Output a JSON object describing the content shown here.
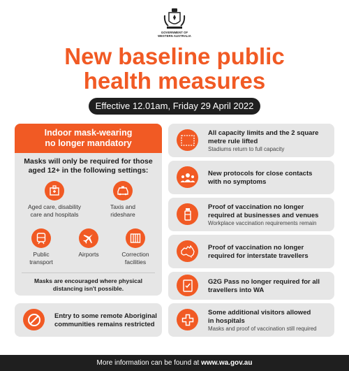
{
  "header": {
    "crest_text": [
      "GOVERNMENT OF",
      "WESTERN AUSTRALIA"
    ],
    "title_line1": "New baseline public",
    "title_line2": "health measures",
    "effective": "Effective 12.01am, Friday 29 April 2022"
  },
  "left_panel": {
    "heading_line1": "Indoor mask-wearing",
    "heading_line2": "no longer mandatory",
    "sub_line1": "Masks will only be required for those",
    "sub_line2": "aged 12+ in the following settings:",
    "settings": [
      {
        "icon": "hospital-icon",
        "line1": "Aged care, disability",
        "line2": "care and hospitals"
      },
      {
        "icon": "taxi-icon",
        "line1": "Taxis and",
        "line2": "rideshare"
      },
      {
        "icon": "train-icon",
        "line1": "Public",
        "line2": "transport"
      },
      {
        "icon": "airplane-icon",
        "line1": "Airports",
        "line2": ""
      },
      {
        "icon": "prison-icon",
        "line1": "Correction",
        "line2": "facilities"
      }
    ],
    "foot_line1": "Masks are encouraged where physical",
    "foot_line2": "distancing isn't possible."
  },
  "aboriginal_card": {
    "icon": "no-entry-icon",
    "line1": "Entry to some remote Aboriginal",
    "line2": "communities remains restricted"
  },
  "right_cards": [
    {
      "icon": "square-metre-icon",
      "icon_text": "2sqm",
      "line1": "All capacity limits and the 2 square",
      "line2": "metre rule lifted",
      "sub1": "Stadiums return to full capacity",
      "sub2": ""
    },
    {
      "icon": "people-group-icon",
      "icon_text": "",
      "line1": "New protocols for close contacts",
      "line2": "with no symptoms",
      "sub1": "",
      "sub2": ""
    },
    {
      "icon": "vaccine-vial-icon",
      "icon_text": "",
      "line1": "Proof of vaccination no longer",
      "line2": "required at businesses and venues",
      "sub1": "Workplace vaccination requirements remain",
      "sub2": ""
    },
    {
      "icon": "australia-map-icon",
      "icon_text": "",
      "line1": "Proof of vaccination no longer",
      "line2": "required for interstate travellers",
      "sub1": "",
      "sub2": ""
    },
    {
      "icon": "pass-document-icon",
      "icon_text": "",
      "line1": "G2G Pass no longer required for all",
      "line2": "travellers into WA",
      "sub1": "",
      "sub2": ""
    },
    {
      "icon": "medical-cross-icon",
      "icon_text": "",
      "line1": "Some additional visitors allowed",
      "line2": "in hospitals",
      "sub1": "Masks and proof of vaccination still required",
      "sub2": ""
    }
  ],
  "footer": {
    "prefix": "More information can be found at ",
    "link": "www.wa.gov.au"
  },
  "colors": {
    "accent": "#f15a24",
    "card_bg": "#e6e6e6",
    "dark": "#1f1f1f"
  }
}
